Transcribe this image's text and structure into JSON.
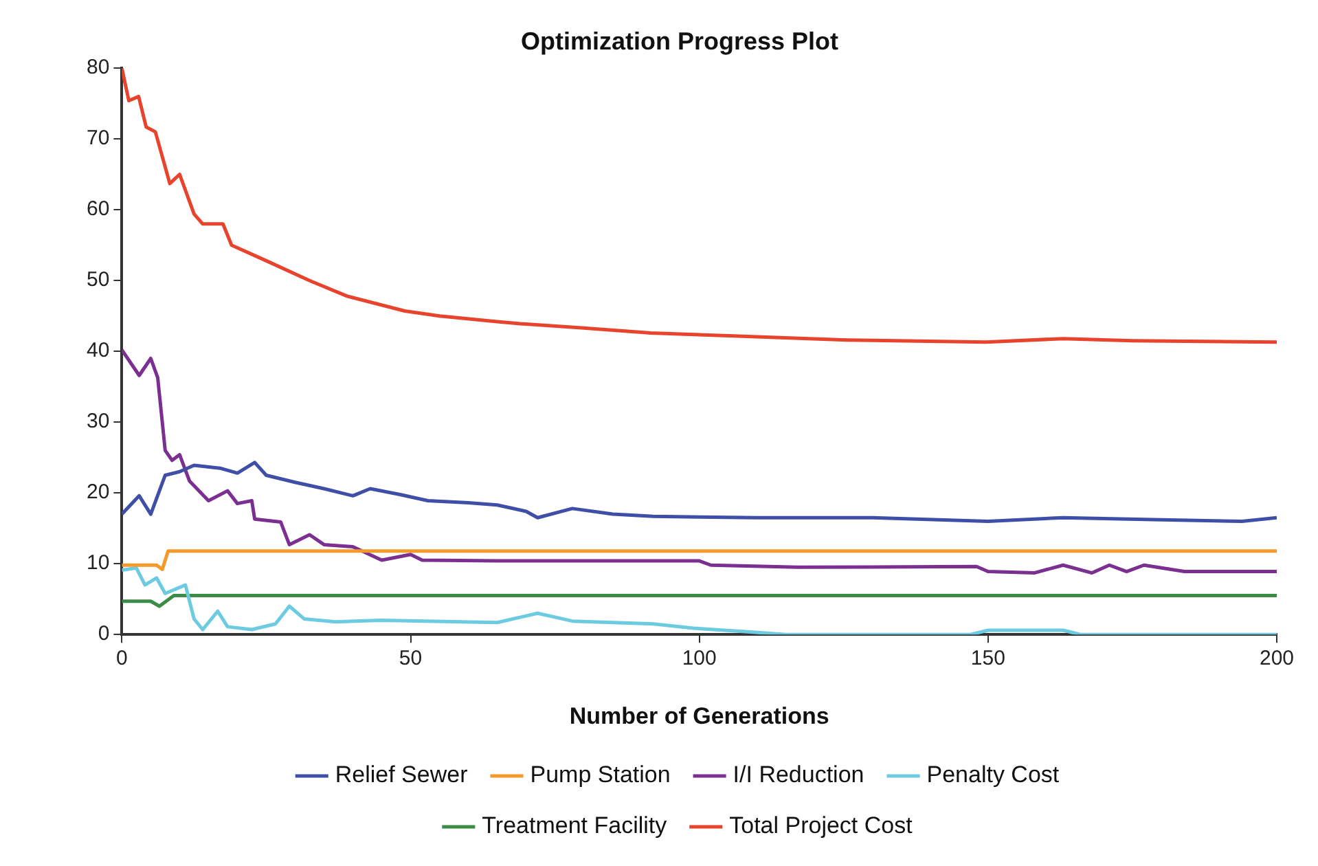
{
  "chart_data": {
    "type": "line",
    "title": "Optimization Progress Plot",
    "xlabel": "Number of Generations",
    "xlim": [
      0,
      200
    ],
    "xticks": [
      0,
      50,
      100,
      150,
      200
    ],
    "ylim": [
      0,
      80
    ],
    "yticks": [
      0,
      10,
      20,
      30,
      40,
      50,
      60,
      70,
      80
    ],
    "grid": false,
    "legend": "bottom",
    "line_style": "solid",
    "series": [
      {
        "name": "Relief Sewer",
        "color": "#3f4fa8",
        "x": [
          0,
          3,
          5,
          7.5,
          10,
          12.5,
          17,
          20,
          23,
          25,
          30,
          35,
          40,
          43,
          48,
          53,
          60,
          65,
          70,
          72,
          78,
          85,
          92,
          100,
          110,
          130,
          150,
          163,
          180,
          194,
          200
        ],
        "values": [
          17,
          19.6,
          17,
          22.5,
          23,
          23.9,
          23.5,
          22.8,
          24.3,
          22.5,
          21.5,
          20.6,
          19.6,
          20.6,
          19.8,
          18.9,
          18.6,
          18.3,
          17.4,
          16.5,
          17.8,
          17,
          16.7,
          16.6,
          16.5,
          16.5,
          16,
          16.5,
          16.2,
          16,
          16.5
        ]
      },
      {
        "name": "Pump Station",
        "color": "#f39a2b",
        "x": [
          0,
          6,
          7,
          8,
          50,
          100,
          150,
          200
        ],
        "values": [
          9.8,
          9.8,
          9.2,
          11.8,
          11.8,
          11.8,
          11.8,
          11.8
        ]
      },
      {
        "name": "I/I Reduction",
        "color": "#7b2f91",
        "x": [
          0,
          3,
          5,
          6.2,
          7.5,
          8.7,
          10,
          11.7,
          15,
          18.3,
          20,
          22.5,
          23,
          27.5,
          29,
          32.5,
          35,
          40,
          45,
          50,
          52,
          65,
          100,
          102,
          117,
          148,
          150,
          158,
          163,
          168,
          171,
          174,
          177,
          184,
          200
        ],
        "values": [
          40.2,
          36.6,
          39,
          36.3,
          26,
          24.6,
          25.4,
          21.7,
          18.9,
          20.3,
          18.5,
          18.9,
          16.3,
          15.9,
          12.7,
          14.1,
          12.7,
          12.4,
          10.5,
          11.3,
          10.5,
          10.4,
          10.4,
          9.8,
          9.5,
          9.6,
          8.9,
          8.7,
          9.8,
          8.7,
          9.8,
          8.9,
          9.8,
          8.9,
          8.9
        ]
      },
      {
        "name": "Penalty Cost",
        "color": "#6ccbe0",
        "x": [
          0,
          2.5,
          4,
          6,
          7.5,
          11,
          12.5,
          14,
          16.6,
          18.3,
          22.5,
          26.6,
          29,
          31.6,
          37,
          45,
          65,
          72,
          78,
          92,
          99,
          108,
          115,
          147,
          150,
          163,
          166,
          200
        ],
        "values": [
          9.1,
          9.4,
          7,
          8,
          5.8,
          7,
          2.2,
          0.7,
          3.3,
          1.1,
          0.7,
          1.5,
          4,
          2.2,
          1.8,
          2,
          1.7,
          3,
          1.9,
          1.5,
          0.9,
          0.4,
          0,
          0,
          0.6,
          0.6,
          0,
          0
        ]
      },
      {
        "name": "Treatment Facility",
        "color": "#3c8c45",
        "x": [
          0,
          5,
          6.5,
          9,
          50,
          100,
          150,
          200
        ],
        "values": [
          4.7,
          4.7,
          4,
          5.5,
          5.5,
          5.5,
          5.5,
          5.5
        ]
      },
      {
        "name": "Total Project Cost",
        "color": "#e8432c",
        "x": [
          0,
          1.2,
          2.9,
          4.2,
          5.8,
          8.3,
          10,
          12.5,
          14,
          17.5,
          19,
          25,
          32.5,
          39,
          49,
          55,
          65,
          69,
          80,
          91.6,
          105,
          125.6,
          149.6,
          163,
          175,
          200
        ],
        "values": [
          80,
          75.4,
          76,
          71.7,
          71,
          63.7,
          65,
          59.4,
          58,
          58,
          55,
          52.8,
          50,
          47.8,
          45.7,
          45,
          44.2,
          43.9,
          43.3,
          42.6,
          42.2,
          41.6,
          41.3,
          41.8,
          41.5,
          41.3
        ]
      }
    ]
  }
}
